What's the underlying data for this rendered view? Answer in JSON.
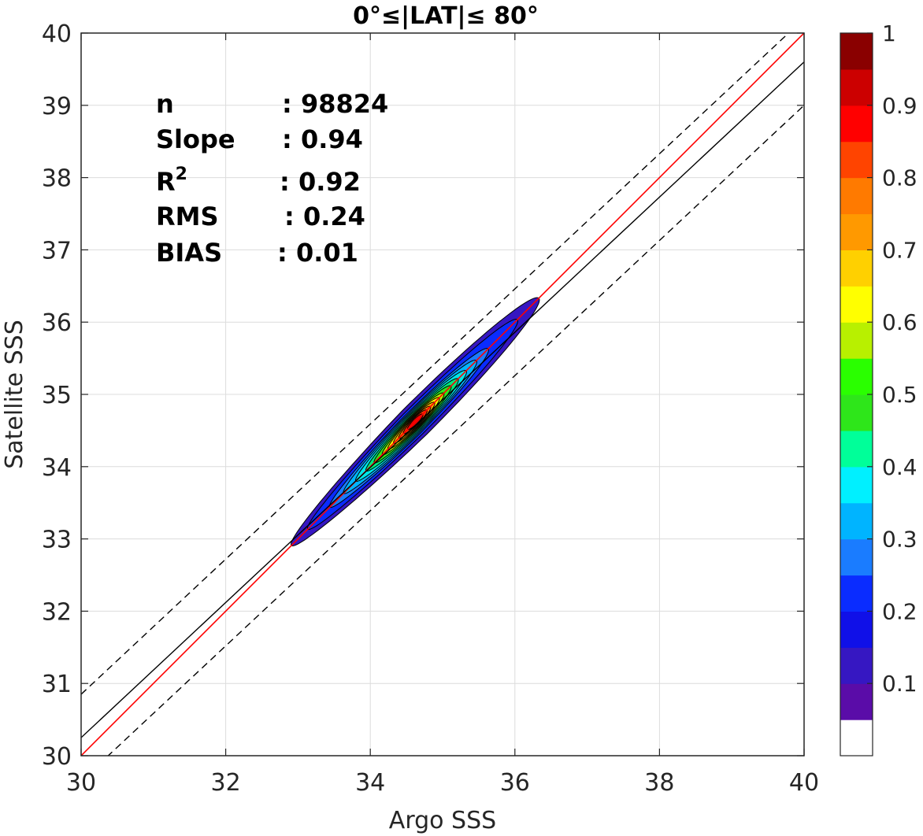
{
  "chart_data": {
    "type": "contour-density-scatter",
    "title": "0°≤|LAT|≤ 80°",
    "xlabel": "Argo SSS",
    "ylabel": "Satellite SSS",
    "xlim": [
      30,
      40
    ],
    "ylim": [
      30,
      40
    ],
    "xticks": [
      30,
      32,
      34,
      36,
      38,
      40
    ],
    "yticks": [
      30,
      31,
      32,
      33,
      34,
      35,
      36,
      37,
      38,
      39,
      40
    ],
    "grid": true,
    "stats": [
      {
        "label": "n",
        "value": ": 98824"
      },
      {
        "label": "Slope",
        "value": ": 0.94"
      },
      {
        "label": "R",
        "sup": "2",
        "value": ": 0.92"
      },
      {
        "label": "RMS",
        "value": ": 0.24"
      },
      {
        "label": "BIAS",
        "value": ": 0.01"
      }
    ],
    "lines": {
      "one_to_one": {
        "slope": 1.0,
        "intercept": 0.0,
        "color": "#ff0000",
        "style": "solid"
      },
      "fit": {
        "x": [
          30,
          40
        ],
        "y": [
          30.25,
          39.6
        ],
        "color": "#000000",
        "style": "solid"
      },
      "upper_bound": {
        "x": [
          30,
          40
        ],
        "y": [
          30.85,
          40.2
        ],
        "color": "#000000",
        "style": "dashed"
      },
      "lower_bound": {
        "x": [
          30,
          40
        ],
        "y": [
          29.65,
          39.0
        ],
        "color": "#000000",
        "style": "dashed"
      }
    },
    "density": {
      "center": [
        34.62,
        34.62
      ],
      "axis_angle_deg": 45,
      "levels": [
        {
          "level": 0.05,
          "color": "#3617c2",
          "half_major": 2.42,
          "half_minor": 0.235,
          "shift": 0.0
        },
        {
          "level": 0.15,
          "color": "#0a2cff",
          "half_major": 2.05,
          "half_minor": 0.19,
          "shift": 0.05
        },
        {
          "level": 0.25,
          "color": "#1a7cff",
          "half_major": 1.55,
          "half_minor": 0.16,
          "shift": 0.12
        },
        {
          "level": 0.3,
          "color": "#00b4ff",
          "half_major": 1.3,
          "half_minor": 0.145,
          "shift": 0.1
        },
        {
          "level": 0.35,
          "color": "#00e6e6",
          "half_major": 1.08,
          "half_minor": 0.13,
          "shift": 0.08
        },
        {
          "level": 0.45,
          "color": "#00e87a",
          "half_major": 0.9,
          "half_minor": 0.115,
          "shift": 0.06
        },
        {
          "level": 0.5,
          "color": "#2ee61a",
          "half_major": 0.75,
          "half_minor": 0.1,
          "shift": 0.05
        },
        {
          "level": 0.6,
          "color": "#b8f000",
          "half_major": 0.6,
          "half_minor": 0.088,
          "shift": 0.04
        },
        {
          "level": 0.65,
          "color": "#fff200",
          "half_major": 0.5,
          "half_minor": 0.078,
          "shift": 0.03
        },
        {
          "level": 0.7,
          "color": "#ffb000",
          "half_major": 0.4,
          "half_minor": 0.068,
          "shift": 0.02
        },
        {
          "level": 0.75,
          "color": "#ff7a00",
          "half_major": 0.31,
          "half_minor": 0.058,
          "shift": 0.01
        },
        {
          "level": 0.85,
          "color": "#ff3200",
          "half_major": 0.23,
          "half_minor": 0.048,
          "shift": 0.0
        },
        {
          "level": 0.9,
          "color": "#e60000",
          "half_major": 0.15,
          "half_minor": 0.036,
          "shift": 0.0
        }
      ]
    },
    "colorbar": {
      "min": 0,
      "max": 1,
      "ticks": [
        0.1,
        0.2,
        0.3,
        0.4,
        0.5,
        0.6,
        0.7,
        0.8,
        0.9,
        1
      ],
      "tick_labels": [
        "0.1",
        "0.2",
        "0.3",
        "0.4",
        "0.5",
        "0.6",
        "0.7",
        "0.8",
        "0.9",
        "1"
      ],
      "colors": [
        "#ffffff",
        "#5a0ca8",
        "#3617c2",
        "#1010e8",
        "#0a2cff",
        "#1a7cff",
        "#00b4ff",
        "#00f0ff",
        "#00ff99",
        "#2ee61a",
        "#2aff00",
        "#b8f000",
        "#ffff00",
        "#ffd000",
        "#ff9900",
        "#ff7a00",
        "#ff4400",
        "#ff0000",
        "#cc0000",
        "#8a0000"
      ]
    }
  }
}
